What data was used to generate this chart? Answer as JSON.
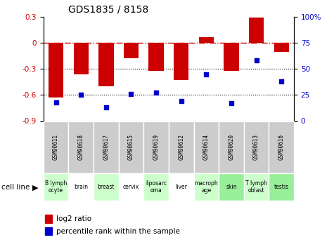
{
  "title": "GDS1835 / 8158",
  "gsm_labels": [
    "GSM90611",
    "GSM90618",
    "GSM90617",
    "GSM90615",
    "GSM90619",
    "GSM90612",
    "GSM90614",
    "GSM90620",
    "GSM90613",
    "GSM90616"
  ],
  "cell_labels": [
    "B lymph\nocyte",
    "brain",
    "breast",
    "cervix",
    "liposarc\noma",
    "liver",
    "macroph\nage",
    "skin",
    "T lymph\noblast",
    "testis"
  ],
  "cell_bg_colors": [
    "#ccffcc",
    "#ffffff",
    "#ccffcc",
    "#ffffff",
    "#ccffcc",
    "#ffffff",
    "#ccffcc",
    "#99ee99",
    "#ccffcc",
    "#99ee99"
  ],
  "log2_ratio": [
    -0.63,
    -0.36,
    -0.5,
    -0.18,
    -0.32,
    -0.43,
    0.07,
    -0.32,
    0.29,
    -0.1
  ],
  "percentile_rank": [
    18,
    25,
    13,
    26,
    27,
    19,
    45,
    17,
    58,
    38
  ],
  "bar_color": "#cc0000",
  "dot_color": "#0000cc",
  "left_ylim": [
    -0.9,
    0.3
  ],
  "right_ylim": [
    0,
    100
  ],
  "left_yticks": [
    0.3,
    0,
    -0.3,
    -0.6,
    -0.9
  ],
  "right_yticks": [
    0,
    25,
    50,
    75,
    100
  ],
  "right_yticklabels": [
    "0",
    "25",
    "50",
    "75",
    "100%"
  ],
  "zero_line_color": "#cc0000",
  "grid_color": "#000000",
  "legend_bar_label": "log2 ratio",
  "legend_dot_label": "percentile rank within the sample",
  "cell_line_label": "cell line"
}
